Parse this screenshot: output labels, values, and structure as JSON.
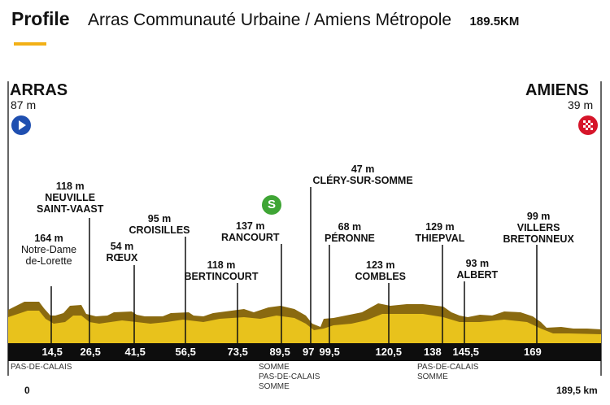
{
  "header": {
    "title": "Profile",
    "route": "Arras Communauté Urbaine / Amiens Métropole",
    "distance": "189.5KM"
  },
  "start": {
    "name": "ARRAS",
    "altitude": "87 m"
  },
  "finish": {
    "name": "AMIENS",
    "altitude": "39 m"
  },
  "sprint_badge": "S",
  "waypoints": [
    {
      "km": "14,5",
      "altitude": "164 m",
      "name": "Notre-Dame de-Lorette"
    },
    {
      "km": "26,5",
      "altitude": "118 m",
      "name": "NEUVILLE SAINT-VAAST"
    },
    {
      "km": "41,5",
      "altitude": "54 m",
      "name": "RŒUX"
    },
    {
      "km": "56,5",
      "altitude": "95 m",
      "name": "CROISILLES"
    },
    {
      "km": "73,5",
      "altitude": "118 m",
      "name": "BERTINCOURT"
    },
    {
      "km": "89,5",
      "altitude": "137 m",
      "name": "RANCOURT"
    },
    {
      "km": "97",
      "altitude": "47 m",
      "name": "CLÉRY-SUR-SOMME"
    },
    {
      "km": "99,5",
      "altitude": "68 m",
      "name": "PÉRONNE"
    },
    {
      "km": "120,5",
      "altitude": "123 m",
      "name": "COMBLES"
    },
    {
      "km": "138",
      "altitude": "129 m",
      "name": "THIEPVAL"
    },
    {
      "km": "145,5",
      "altitude": "93 m",
      "name": "ALBERT"
    },
    {
      "km": "169",
      "altitude": "99 m",
      "name": "VILLERS BRETONNEUX"
    }
  ],
  "departments": {
    "left": "PAS-DE-CALAIS",
    "mid": [
      "SOMME",
      "PAS-DE-CALAIS",
      "SOMME"
    ],
    "right": [
      "PAS-DE-CALAIS",
      "SOMME"
    ]
  },
  "axis": {
    "start": "0",
    "end": "189,5 km"
  },
  "colors": {
    "terrain": "#e8c21c",
    "terrain_dark": "#8a6a10",
    "accent": "#f2b016",
    "sprint": "#3fa535",
    "start_icon": "#1f4fb0",
    "finish_icon": "#d6152a"
  },
  "icons": {
    "start": "play-icon",
    "finish": "checkered-flag-icon"
  }
}
